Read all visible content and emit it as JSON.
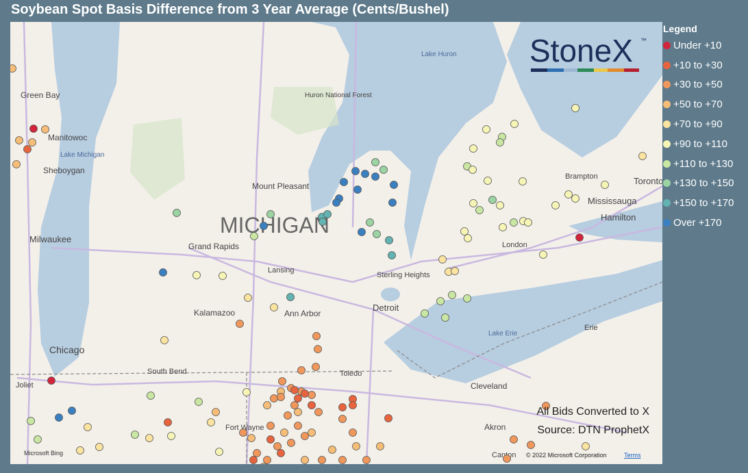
{
  "header": {
    "title": "Soybean Spot Basis Difference from 3 Year Average (Cents/Bushel)"
  },
  "legend": {
    "title": "Legend",
    "items": [
      {
        "label": "Under +10",
        "color": "#d2253c"
      },
      {
        "label": "+10 to +30",
        "color": "#e8643e"
      },
      {
        "label": "+30 to +50",
        "color": "#f0975c"
      },
      {
        "label": "+50 to +70",
        "color": "#f6bd78"
      },
      {
        "label": "+70 to +90",
        "color": "#fbe3a0"
      },
      {
        "label": "+90 to +110",
        "color": "#f6f5b6"
      },
      {
        "label": "+110 to +130",
        "color": "#c9e7a3"
      },
      {
        "label": "+130 to +150",
        "color": "#9bd3a2"
      },
      {
        "label": "+150 to +170",
        "color": "#62b3b2"
      },
      {
        "label": "Over +170",
        "color": "#3a7fbf"
      }
    ]
  },
  "logo": {
    "name": "StoneX",
    "mark": "™"
  },
  "map_labels": [
    "Lake Huron",
    "Huron National Forest",
    "Green Bay",
    "Manitowoc",
    "Lake Michigan",
    "Sheboygan",
    "Mount Pleasant",
    "MICHIGAN",
    "Milwaukee",
    "Grand Rapids",
    "Lansing",
    "Kalamazoo",
    "Ann Arbor",
    "Detroit",
    "Sterling Heights",
    "Chicago",
    "South Bend",
    "Toledo",
    "Joliet",
    "Fort Wayne",
    "Cleveland",
    "Akron",
    "Canton",
    "Lake Erie",
    "Erie",
    "London",
    "Brampton",
    "Toronto",
    "Mississauga",
    "Hamilton"
  ],
  "notes": [
    "All Bids Converted to X",
    "Source: DTN ProphetX"
  ],
  "footer": {
    "attribution": "Microsoft Bing",
    "copyright": "© 2022 Microsoft Corporation",
    "terms": "Terms"
  }
}
